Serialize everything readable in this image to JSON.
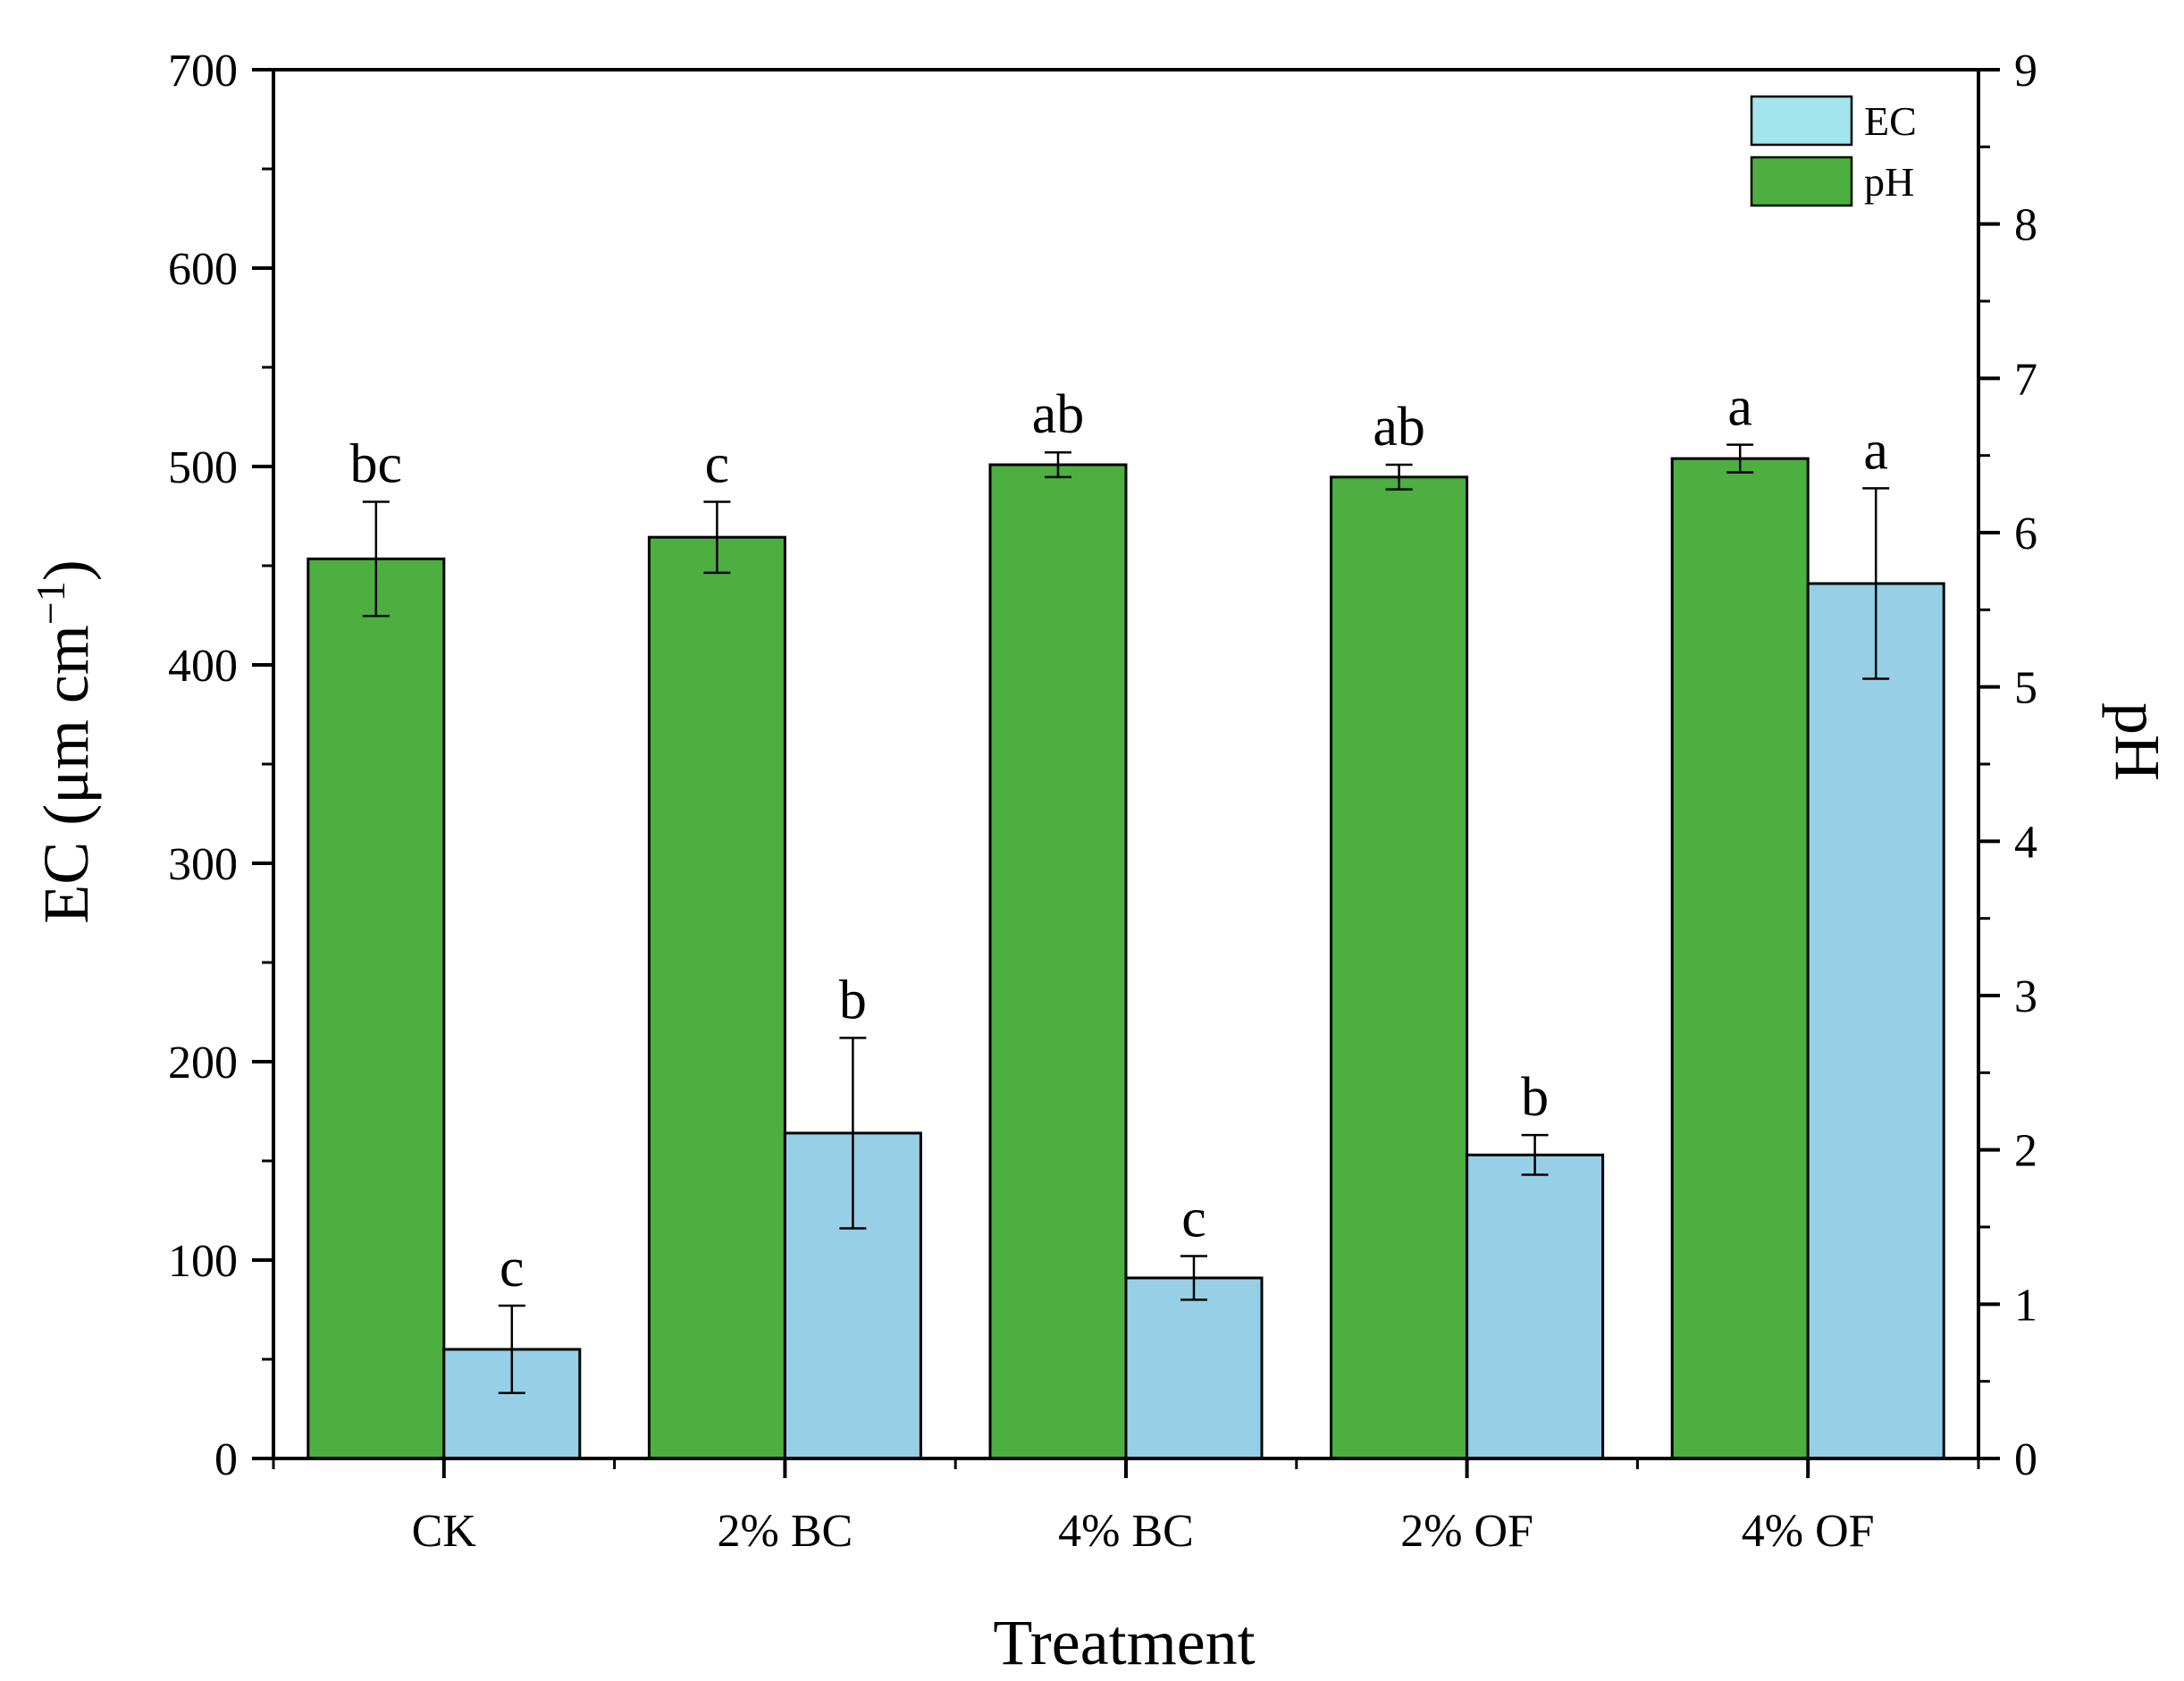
{
  "chart_data": {
    "type": "bar",
    "xlabel": "Treatment",
    "ylabel_left": "EC (μm cm",
    "ylabel_left_sup": "−1",
    "ylabel_left_close": ")",
    "ylabel_right": "pH",
    "categories": [
      "CK",
      "2% BC",
      "4% BC",
      "2% OF",
      "4% OF"
    ],
    "ylim_left": [
      0,
      700
    ],
    "yticks_left": [
      "0",
      "100",
      "200",
      "300",
      "400",
      "500",
      "600",
      "700"
    ],
    "ylim_right": [
      0,
      9
    ],
    "yticks_right": [
      "0",
      "1",
      "2",
      "3",
      "4",
      "5",
      "6",
      "7",
      "8",
      "9"
    ],
    "series": [
      {
        "name": "pH",
        "axis": "right",
        "color": "#4caf3f",
        "values": [
          5.83,
          5.97,
          6.44,
          6.36,
          6.48
        ],
        "errors": [
          0.37,
          0.23,
          0.08,
          0.08,
          0.09
        ],
        "significance": [
          "bc",
          "c",
          "ab",
          "ab",
          "a"
        ]
      },
      {
        "name": "EC",
        "axis": "left",
        "color": "#96cfe6",
        "values": [
          55,
          164,
          91,
          153,
          441
        ],
        "errors": [
          22,
          48,
          11,
          10,
          48
        ],
        "significance": [
          "c",
          "b",
          "c",
          "b",
          "a"
        ]
      }
    ],
    "legend": [
      {
        "label": "EC",
        "color": "#a4e4ec"
      },
      {
        "label": "pH",
        "color": "#4caf3f"
      }
    ],
    "legend_position": "top-right",
    "grid": false
  }
}
